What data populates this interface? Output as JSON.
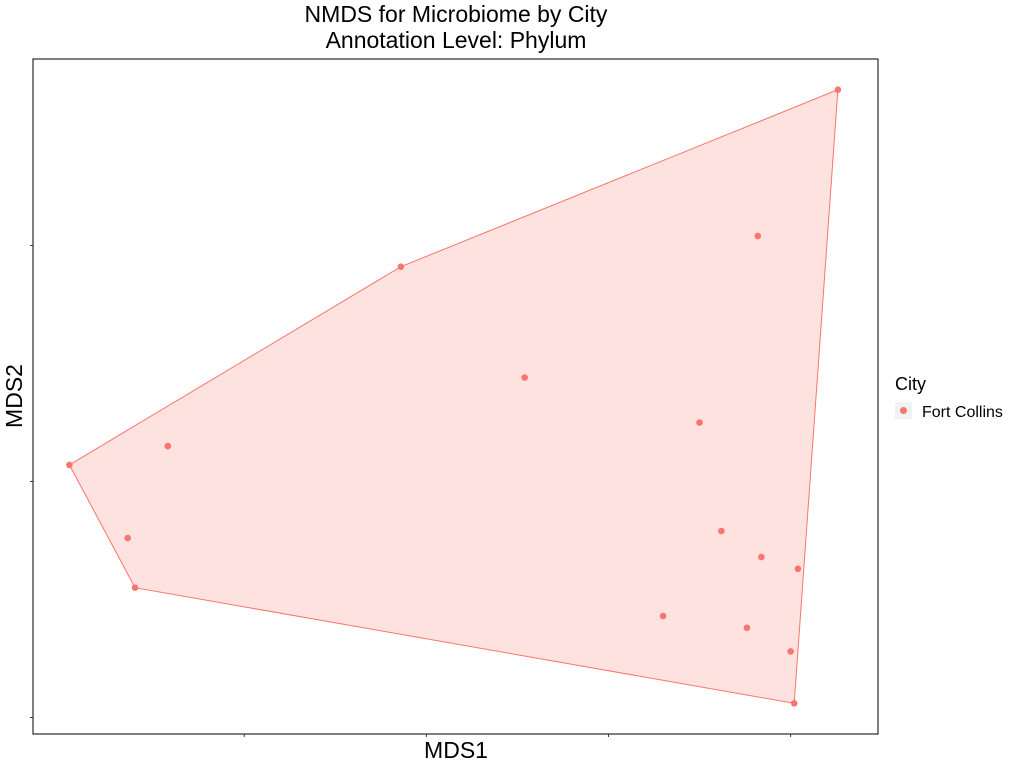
{
  "chart_data": {
    "type": "scatter",
    "title": "NMDS for Microbiome by City",
    "subtitle": "Annotation Level: Phylum",
    "xlabel": "MDS1",
    "ylabel": "MDS2",
    "xlim": [
      -1.08,
      1.24
    ],
    "ylim": [
      -1.07,
      1.79
    ],
    "x_ticks": [
      -0.5,
      0.0,
      0.5,
      1.0
    ],
    "y_ticks": [
      -1.0,
      0.0,
      1.0
    ],
    "grid": false,
    "legend": {
      "title": "City",
      "position": "right",
      "entries": [
        {
          "label": "Fort Collins",
          "color": "#F8766D"
        }
      ]
    },
    "series": [
      {
        "name": "Fort Collins",
        "color": "#F8766D",
        "hull_fill": "#FDE2E0",
        "points": [
          {
            "x": 1.13,
            "y": 1.66
          },
          {
            "x": 0.91,
            "y": 1.04
          },
          {
            "x": -0.07,
            "y": 0.91
          },
          {
            "x": 0.27,
            "y": 0.44
          },
          {
            "x": 0.75,
            "y": 0.25
          },
          {
            "x": -0.71,
            "y": 0.15
          },
          {
            "x": -0.98,
            "y": 0.07
          },
          {
            "x": -0.82,
            "y": -0.24
          },
          {
            "x": 0.81,
            "y": -0.21
          },
          {
            "x": 0.92,
            "y": -0.32
          },
          {
            "x": 1.02,
            "y": -0.37
          },
          {
            "x": -0.8,
            "y": -0.45
          },
          {
            "x": 0.65,
            "y": -0.57
          },
          {
            "x": 0.88,
            "y": -0.62
          },
          {
            "x": 1.0,
            "y": -0.72
          },
          {
            "x": 1.01,
            "y": -0.94
          }
        ],
        "hull": [
          {
            "x": 1.13,
            "y": 1.66
          },
          {
            "x": 1.01,
            "y": -0.94
          },
          {
            "x": -0.8,
            "y": -0.45
          },
          {
            "x": -0.98,
            "y": 0.07
          },
          {
            "x": -0.07,
            "y": 0.91
          }
        ]
      }
    ]
  }
}
